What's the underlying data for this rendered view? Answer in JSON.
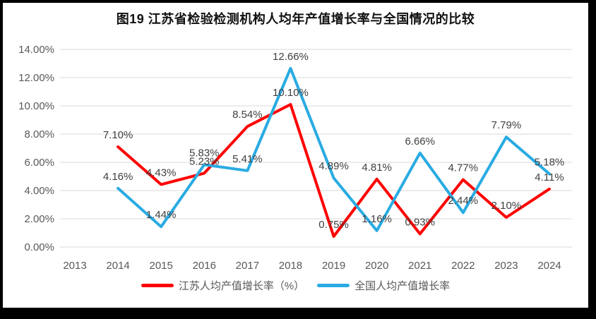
{
  "chart_data": {
    "type": "line",
    "title": "图19 江苏省检验检测机构人均年产值增长率与全国情况的比较",
    "x_labels": [
      "2013",
      "2014",
      "2015",
      "2016",
      "2017",
      "2018",
      "2019",
      "2020",
      "2021",
      "2022",
      "2023",
      "2024"
    ],
    "series": [
      {
        "name": "江苏人均产值增长率（%）",
        "color": "#FF0000",
        "values": [
          null,
          7.1,
          4.43,
          5.23,
          8.54,
          10.1,
          0.75,
          4.81,
          0.93,
          4.77,
          2.1,
          4.11
        ]
      },
      {
        "name": "全国人均产值增长率",
        "color": "#29ABE2",
        "values": [
          null,
          4.16,
          1.44,
          5.83,
          5.41,
          12.66,
          4.89,
          1.16,
          6.66,
          2.44,
          7.79,
          5.18
        ]
      }
    ],
    "ylim": [
      0,
      14
    ],
    "ytick_step": 2,
    "ytick_labels": [
      "0.00%",
      "2.00%",
      "4.00%",
      "6.00%",
      "8.00%",
      "10.00%",
      "12.00%",
      "14.00%"
    ],
    "grid": true,
    "data_labels": true,
    "legend_position": "bottom"
  },
  "colors": {
    "grid_line": "#D9D9D9",
    "axis_text": "#595959",
    "data_label_text": "#404040",
    "background": "#FFFFFF",
    "frame_border": "#000000"
  }
}
